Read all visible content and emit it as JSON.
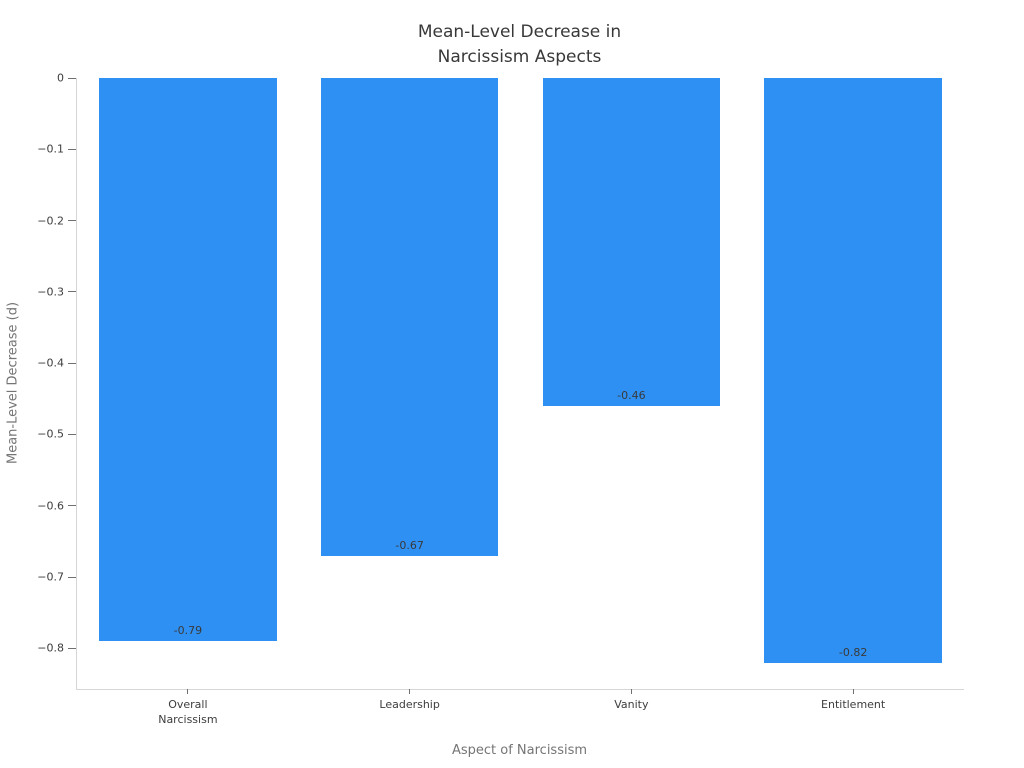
{
  "chart_data": {
    "type": "bar",
    "title": "Mean-Level Decrease in\nNarcissism Aspects",
    "xlabel": "Aspect of Narcissism",
    "ylabel": "Mean-Level Decrease (d)",
    "categories": [
      "Overall\nNarcissism",
      "Leadership",
      "Vanity",
      "Entitlement"
    ],
    "values": [
      -0.79,
      -0.67,
      -0.46,
      -0.82
    ],
    "bar_labels": [
      "-0.79",
      "-0.67",
      "-0.46",
      "-0.82"
    ],
    "yticks": [
      0,
      -0.1,
      -0.2,
      -0.3,
      -0.4,
      -0.5,
      -0.6,
      -0.7,
      -0.8
    ],
    "ytick_labels": [
      "0",
      "−0.1",
      "−0.2",
      "−0.3",
      "−0.4",
      "−0.5",
      "−0.6",
      "−0.7",
      "−0.8"
    ],
    "ylim": [
      -0.857,
      0
    ],
    "bar_color": "#2E90F2",
    "bar_width_fraction": 0.8,
    "grid": false,
    "legend": "none"
  }
}
